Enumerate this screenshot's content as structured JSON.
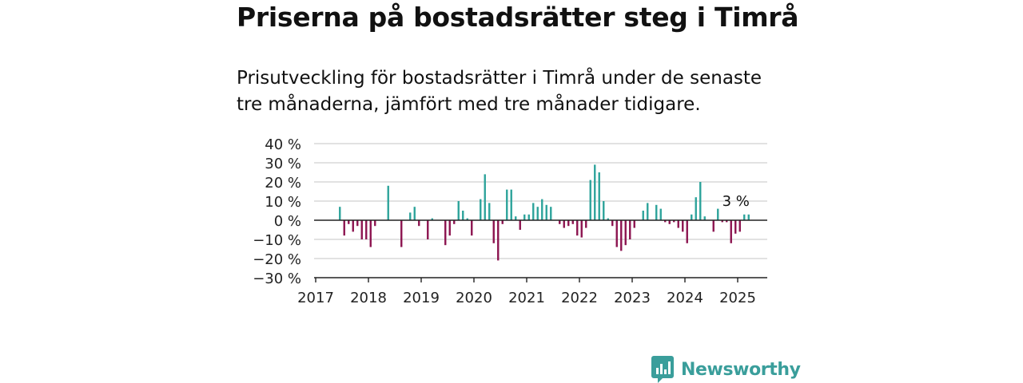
{
  "header": {
    "title": "Priserna på bostadsrätter steg i Timrå",
    "subtitle_line1": "Prisutveckling för bostadsrätter i Timrå under de senaste",
    "subtitle_line2": "tre månaderna, jämfört med tre månader tidigare."
  },
  "brand": {
    "name": "Newsworthy",
    "icon": "newsworthy-logo-icon"
  },
  "colors": {
    "positive": "#2ea39b",
    "negative": "#8c1450",
    "grid": "#d9d9d9",
    "axis": "#222222"
  },
  "chart_data": {
    "type": "bar",
    "ylim": [
      -30,
      40
    ],
    "yticks": [
      -30,
      -20,
      -10,
      0,
      10,
      20,
      30,
      40
    ],
    "ytick_labels": [
      "−30 %",
      "−20 %",
      "−10 %",
      "0 %",
      "10 %",
      "20 %",
      "30 %",
      "40 %"
    ],
    "xticks": [
      "2017",
      "2018",
      "2019",
      "2020",
      "2021",
      "2022",
      "2023",
      "2024",
      "2025"
    ],
    "start": "2017-06",
    "values": [
      7,
      -8,
      -2,
      -6,
      -3,
      -10,
      -10,
      -14,
      -3,
      0,
      0,
      18,
      0,
      0,
      -14,
      0,
      4,
      7,
      -3,
      0,
      -10,
      1,
      0,
      0,
      -13,
      -8,
      -2,
      10,
      5,
      1,
      -8,
      0,
      11,
      24,
      9,
      -12,
      -21,
      -2,
      16,
      16,
      2,
      -5,
      3,
      3,
      9,
      7,
      11,
      8,
      7,
      0,
      -2,
      -4,
      -3,
      -2,
      -8,
      -9,
      -4,
      21,
      29,
      25,
      10,
      1,
      -3,
      -14,
      -16,
      -13,
      -10,
      -4,
      0,
      5,
      9,
      0,
      8,
      6,
      -1,
      -2,
      -1,
      -4,
      -6,
      -12,
      3,
      12,
      20,
      2,
      0,
      -6,
      6,
      -1,
      -1,
      -12,
      -7,
      -6,
      3,
      3
    ],
    "annotation": {
      "text": "3 %",
      "index": 93
    }
  }
}
